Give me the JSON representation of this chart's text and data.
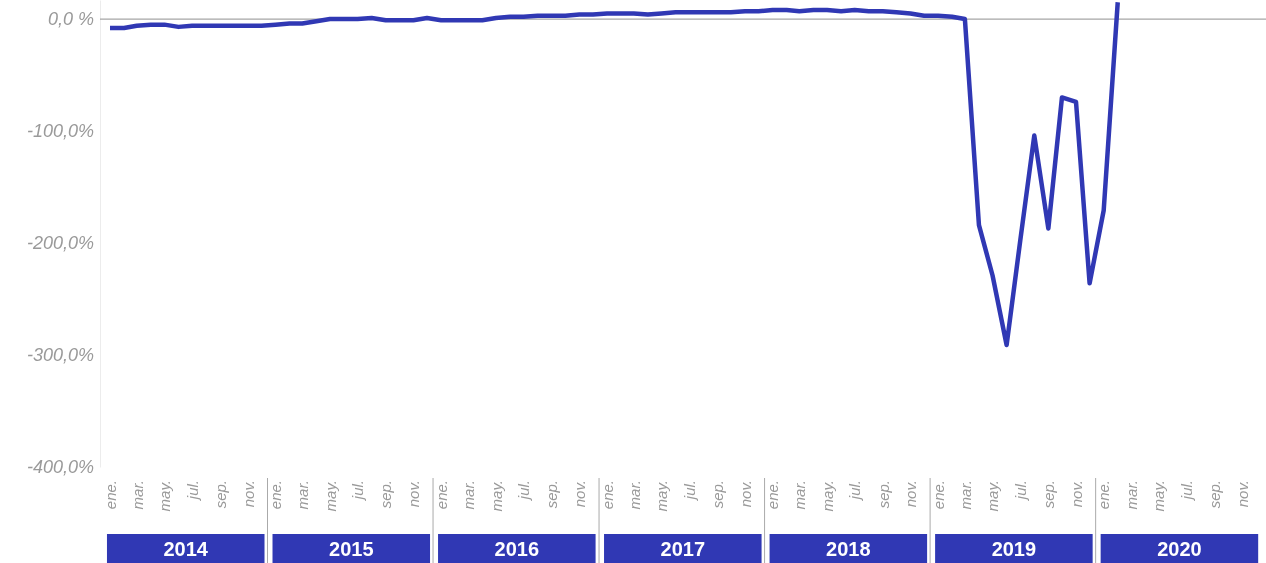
{
  "chart_data": {
    "type": "line",
    "x": [
      "2014-01",
      "2014-02",
      "2014-03",
      "2014-04",
      "2014-05",
      "2014-06",
      "2014-07",
      "2014-08",
      "2014-09",
      "2014-10",
      "2014-11",
      "2014-12",
      "2015-01",
      "2015-02",
      "2015-03",
      "2015-04",
      "2015-05",
      "2015-06",
      "2015-07",
      "2015-08",
      "2015-09",
      "2015-10",
      "2015-11",
      "2015-12",
      "2016-01",
      "2016-02",
      "2016-03",
      "2016-04",
      "2016-05",
      "2016-06",
      "2016-07",
      "2016-08",
      "2016-09",
      "2016-10",
      "2016-11",
      "2016-12",
      "2017-01",
      "2017-02",
      "2017-03",
      "2017-04",
      "2017-05",
      "2017-06",
      "2017-07",
      "2017-08",
      "2017-09",
      "2017-10",
      "2017-11",
      "2017-12",
      "2018-01",
      "2018-02",
      "2018-03",
      "2018-04",
      "2018-05",
      "2018-06",
      "2018-07",
      "2018-08",
      "2018-09",
      "2018-10",
      "2018-11",
      "2018-12",
      "2019-01",
      "2019-02",
      "2019-03",
      "2019-04",
      "2019-05",
      "2019-06",
      "2019-07",
      "2019-08",
      "2019-09",
      "2019-10",
      "2019-11",
      "2019-12",
      "2020-01",
      "2020-02"
    ],
    "series": [
      {
        "color": "#3038b4",
        "values": [
          -8,
          -8,
          -6,
          -5,
          -5,
          -7,
          -6,
          -6,
          -6,
          -6,
          -6,
          -6,
          -5,
          -4,
          -4,
          -2,
          0,
          0,
          0,
          1,
          -1,
          -1,
          -1,
          1,
          -1,
          -1,
          -1,
          -1,
          1,
          2,
          2,
          3,
          3,
          3,
          4,
          4,
          5,
          5,
          5,
          4,
          5,
          6,
          6,
          6,
          6,
          6,
          7,
          7,
          8,
          8,
          7,
          8,
          8,
          7,
          8,
          7,
          7,
          6,
          5,
          3,
          3,
          2,
          0,
          -184,
          -229,
          -291,
          -198,
          -104,
          -187,
          -70,
          -74,
          -236,
          -171,
          15
        ]
      }
    ],
    "xlim": [
      "2014-01",
      "2020-11"
    ],
    "xticks": [
      {
        "value": "2014-01",
        "label": "ene."
      },
      {
        "value": "2014-03",
        "label": "mar."
      },
      {
        "value": "2014-05",
        "label": "may."
      },
      {
        "value": "2014-07",
        "label": "jul."
      },
      {
        "value": "2014-09",
        "label": "sep."
      },
      {
        "value": "2014-11",
        "label": "nov."
      },
      {
        "value": "2015-01",
        "label": "ene."
      },
      {
        "value": "2015-03",
        "label": "mar."
      },
      {
        "value": "2015-05",
        "label": "may."
      },
      {
        "value": "2015-07",
        "label": "jul."
      },
      {
        "value": "2015-09",
        "label": "sep."
      },
      {
        "value": "2015-11",
        "label": "nov."
      },
      {
        "value": "2016-01",
        "label": "ene."
      },
      {
        "value": "2016-03",
        "label": "mar."
      },
      {
        "value": "2016-05",
        "label": "may."
      },
      {
        "value": "2016-07",
        "label": "jul."
      },
      {
        "value": "2016-09",
        "label": "sep."
      },
      {
        "value": "2016-11",
        "label": "nov."
      },
      {
        "value": "2017-01",
        "label": "ene."
      },
      {
        "value": "2017-03",
        "label": "mar."
      },
      {
        "value": "2017-05",
        "label": "may."
      },
      {
        "value": "2017-07",
        "label": "jul."
      },
      {
        "value": "2017-09",
        "label": "sep."
      },
      {
        "value": "2017-11",
        "label": "nov."
      },
      {
        "value": "2018-01",
        "label": "ene."
      },
      {
        "value": "2018-03",
        "label": "mar."
      },
      {
        "value": "2018-05",
        "label": "may."
      },
      {
        "value": "2018-07",
        "label": "jul."
      },
      {
        "value": "2018-09",
        "label": "sep."
      },
      {
        "value": "2018-11",
        "label": "nov."
      },
      {
        "value": "2019-01",
        "label": "ene."
      },
      {
        "value": "2019-03",
        "label": "mar."
      },
      {
        "value": "2019-05",
        "label": "may."
      },
      {
        "value": "2019-07",
        "label": "jul."
      },
      {
        "value": "2019-09",
        "label": "sep."
      },
      {
        "value": "2019-11",
        "label": "nov."
      },
      {
        "value": "2020-01",
        "label": "ene."
      },
      {
        "value": "2020-03",
        "label": "mar."
      },
      {
        "value": "2020-05",
        "label": "may."
      },
      {
        "value": "2020-07",
        "label": "jul."
      },
      {
        "value": "2020-09",
        "label": "sep."
      },
      {
        "value": "2020-11",
        "label": "nov."
      }
    ],
    "ylim": [
      -400,
      17
    ],
    "yticks": [
      {
        "value": 0,
        "label": "0,0 %"
      },
      {
        "value": -100,
        "label": "-100,0%"
      },
      {
        "value": -200,
        "label": "-200,0%"
      },
      {
        "value": -300,
        "label": "-300,0%"
      },
      {
        "value": -400,
        "label": "-400,0%"
      }
    ],
    "annotations": [
      "2014",
      "2015",
      "2016",
      "2017",
      "2018",
      "2019",
      "2020"
    ],
    "ref_lines": [
      {
        "axis": "y",
        "value": 0,
        "color": "#a6a6a6"
      }
    ],
    "marker": "none",
    "line_style": "solid"
  }
}
